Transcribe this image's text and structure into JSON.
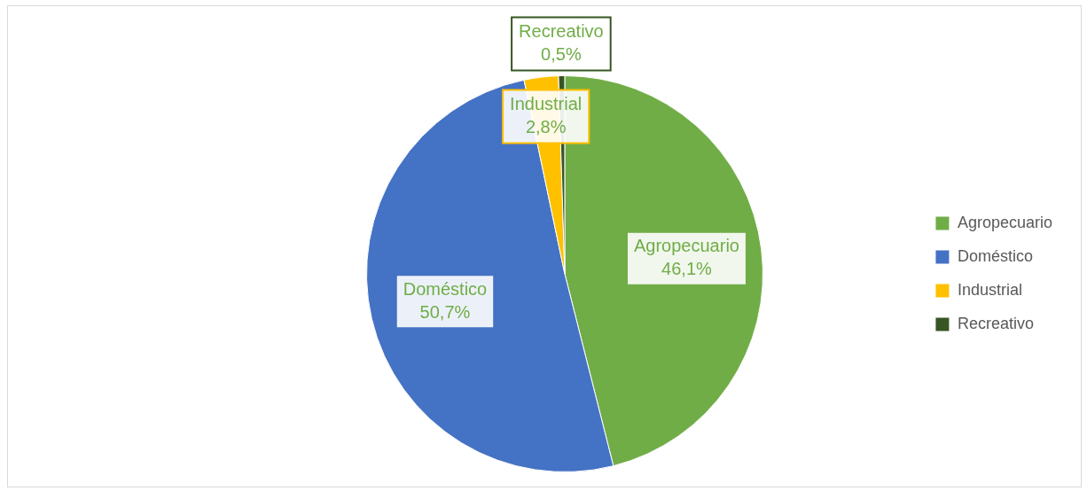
{
  "chart_data": {
    "type": "pie",
    "categories": [
      "Agropecuario",
      "Doméstico",
      "Industrial",
      "Recreativo"
    ],
    "values": [
      46.1,
      50.7,
      2.8,
      0.5
    ],
    "colors": [
      "#70ad47",
      "#4472c4",
      "#ffc000",
      "#375623"
    ],
    "value_labels": [
      "46,1%",
      "50,7%",
      "2,8%",
      "0,5%"
    ],
    "legend": "right"
  }
}
